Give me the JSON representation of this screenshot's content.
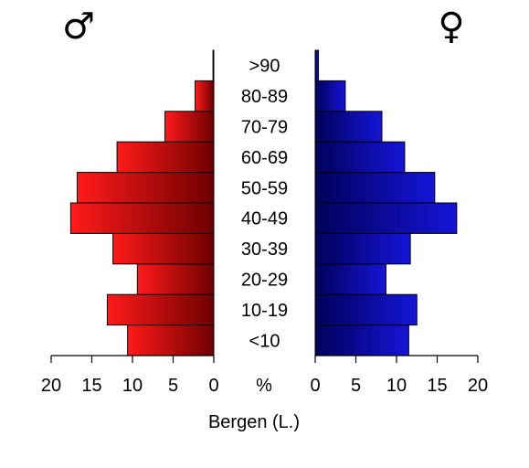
{
  "chart_data": {
    "type": "bar",
    "orientation": "horizontal-population-pyramid",
    "categories": [
      "<10",
      "10-19",
      "20-29",
      "30-39",
      "40-49",
      "50-59",
      "60-69",
      "70-79",
      "80-89",
      ">90"
    ],
    "series": [
      {
        "name": "♂",
        "side": "left",
        "color": "#ff1a1a",
        "color_dark": "#6e0000",
        "values": [
          10.6,
          13.1,
          9.4,
          12.4,
          17.6,
          16.8,
          11.9,
          6.0,
          2.3,
          0.1
        ]
      },
      {
        "name": "♀",
        "side": "right",
        "color": "#1515d8",
        "color_dark": "#00005a",
        "values": [
          11.5,
          12.5,
          8.7,
          11.7,
          17.4,
          14.7,
          11.0,
          8.2,
          3.7,
          0.4
        ]
      }
    ],
    "xlim": [
      0,
      20
    ],
    "xticks": [
      "20",
      "15",
      "10",
      "5",
      "0"
    ],
    "xticks_right": [
      "0",
      "5",
      "10",
      "15",
      "20"
    ],
    "center_unit": "%",
    "xlabel": "Bergen (L.)",
    "grid": false,
    "legend": "symbols-top"
  }
}
